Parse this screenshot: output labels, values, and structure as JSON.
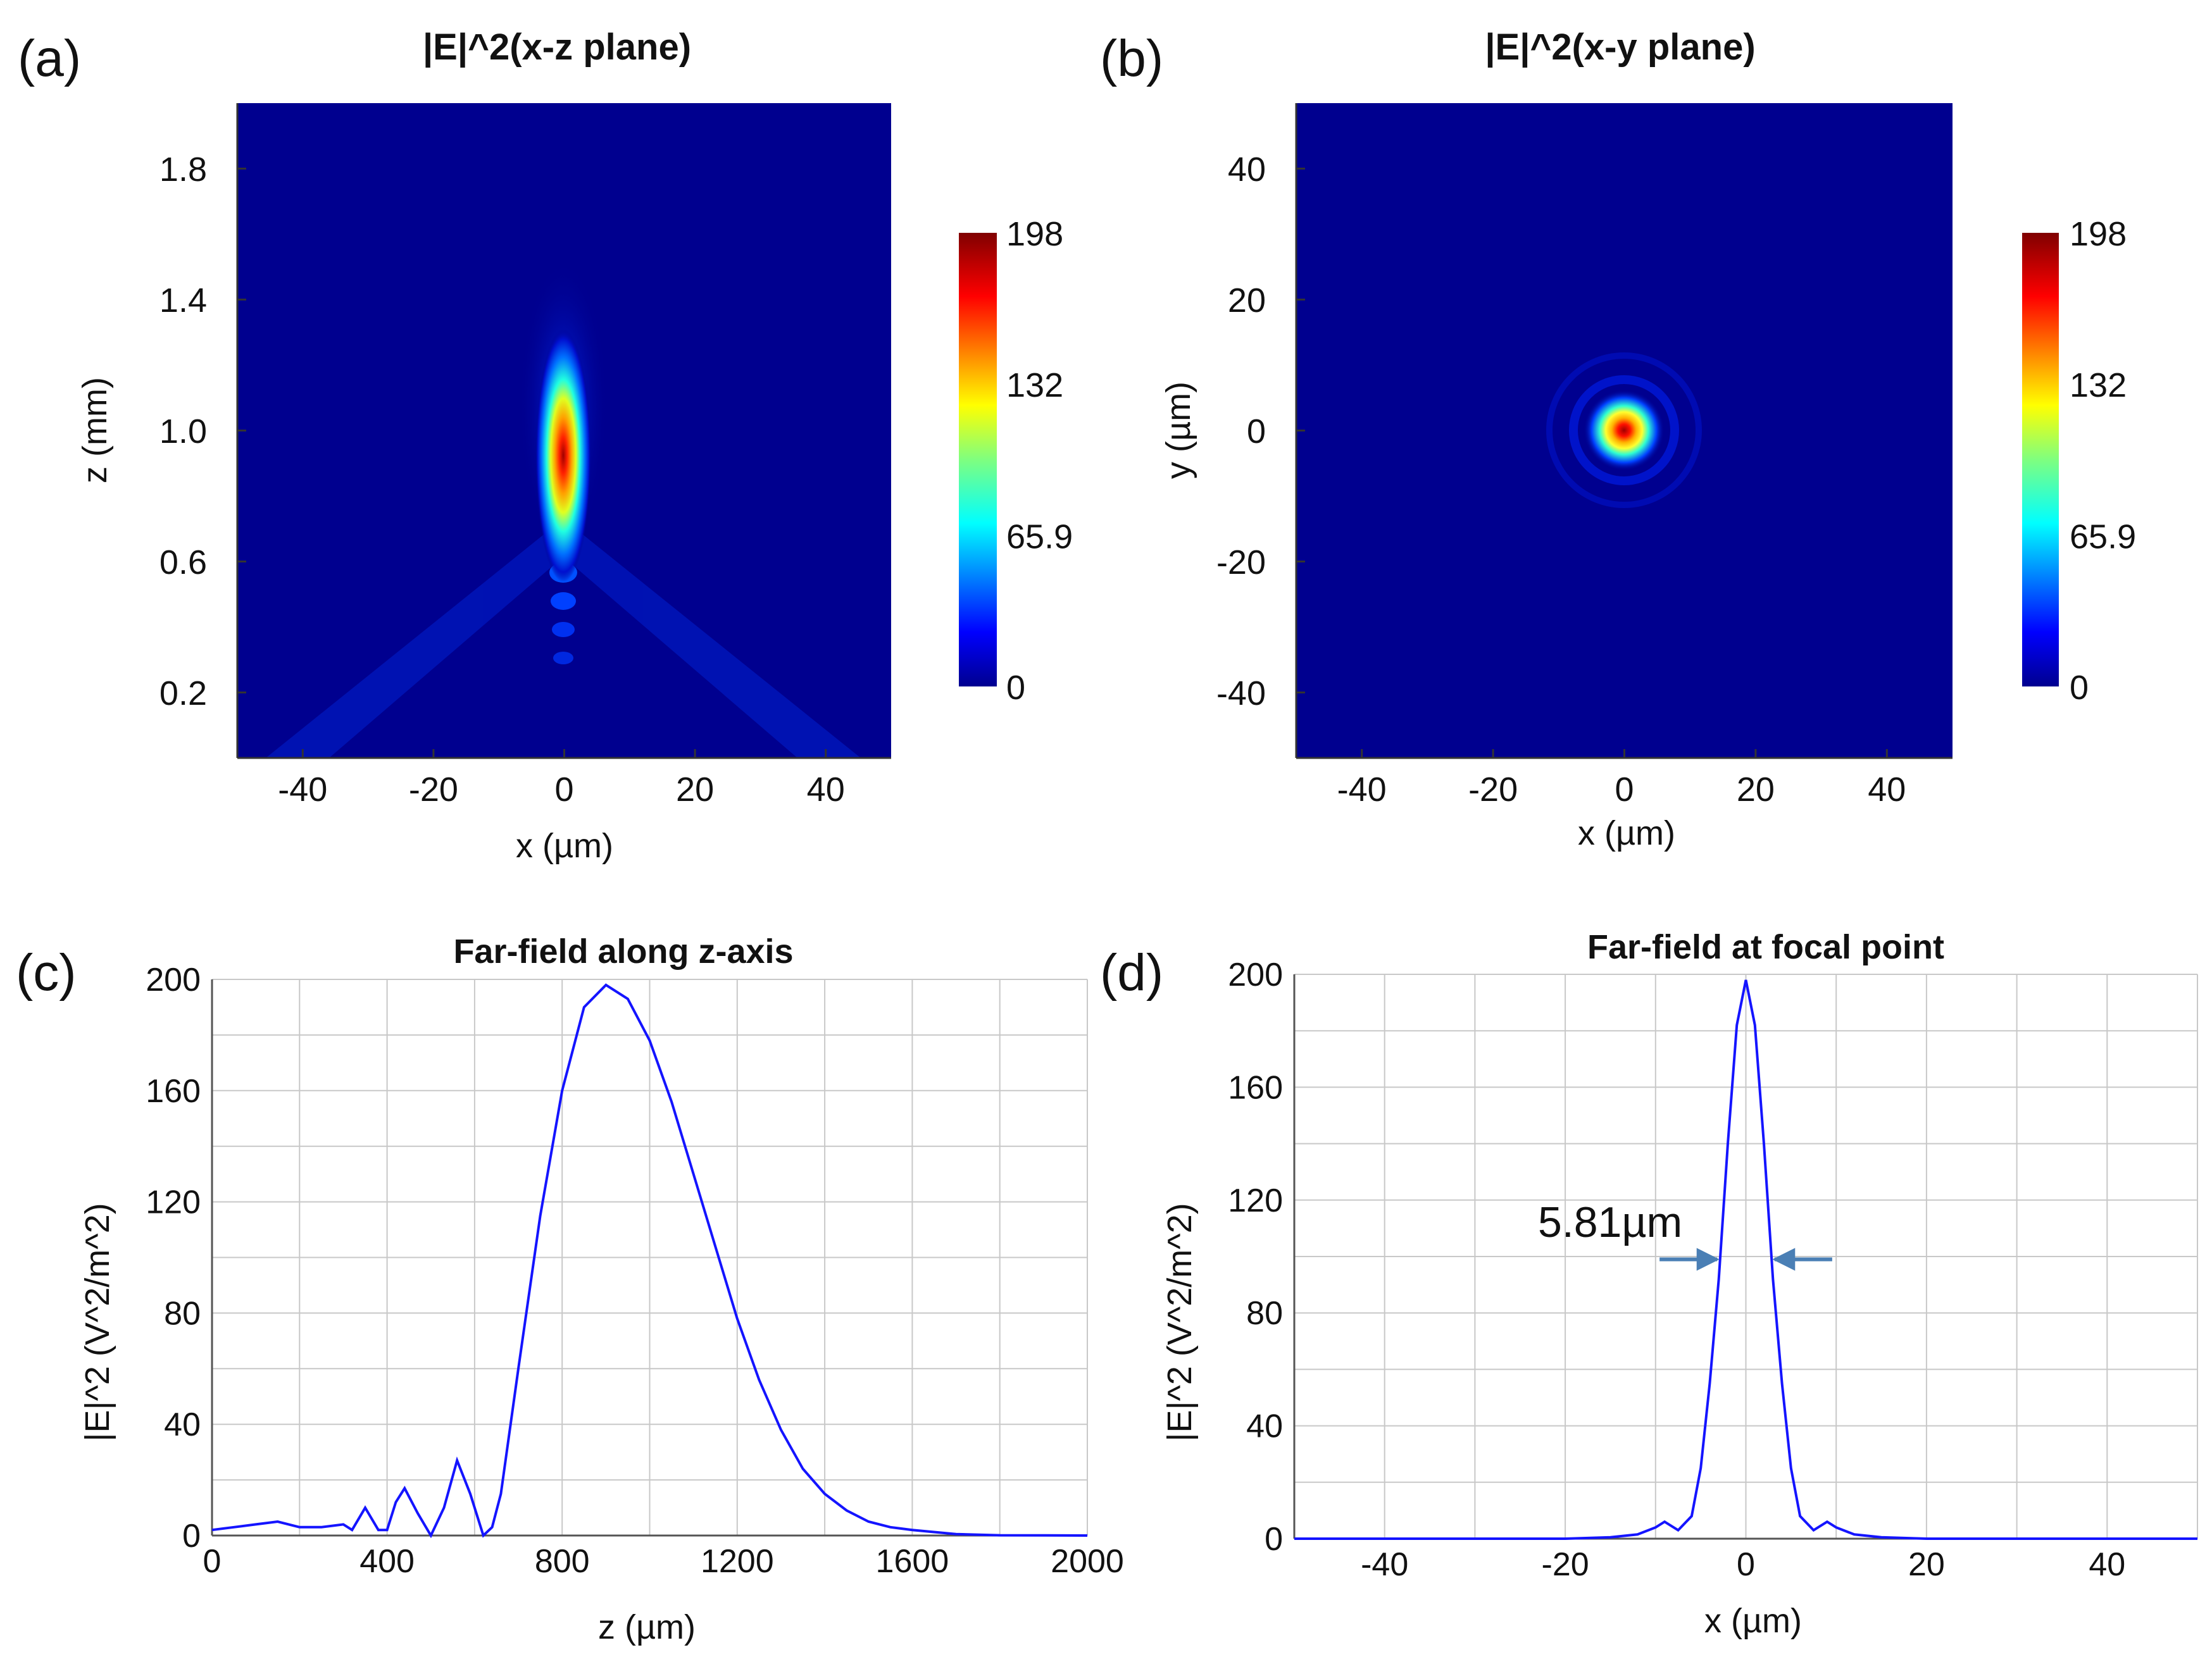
{
  "figure": {
    "colors": {
      "curve": "#1414ff",
      "grid": "#c8c8c8",
      "annotation_arrow": "#4a7fb5",
      "heatmap_bg": "#00008f"
    }
  },
  "chart_data": [
    {
      "panel_label": "(a)",
      "type": "heatmap",
      "title": "|E|^2(x-z plane)",
      "xlabel": "x (µm)",
      "ylabel": "z (mm)",
      "x_ticks": [
        "-40",
        "-20",
        "0",
        "20",
        "40"
      ],
      "x_tick_values": [
        -40,
        -20,
        0,
        20,
        40
      ],
      "y_ticks": [
        "0.2",
        "0.6",
        "1.0",
        "1.4",
        "1.8"
      ],
      "y_tick_values": [
        0.2,
        0.6,
        1.0,
        1.4,
        1.8
      ],
      "xlim": [
        -50,
        50
      ],
      "ylim": [
        0,
        2.0
      ],
      "colorbar": {
        "ticks": [
          "0",
          "65.9",
          "132",
          "198"
        ],
        "tick_values": [
          0,
          65.9,
          132,
          198
        ],
        "range": [
          0,
          198
        ],
        "colormap": "jet"
      },
      "peak": {
        "x": 0,
        "z": 0.9,
        "value": 198
      }
    },
    {
      "panel_label": "(b)",
      "type": "heatmap",
      "title": "|E|^2(x-y plane)",
      "xlabel": "x (µm)",
      "ylabel": "y (µm)",
      "x_ticks": [
        "-40",
        "-20",
        "0",
        "20",
        "40"
      ],
      "x_tick_values": [
        -40,
        -20,
        0,
        20,
        40
      ],
      "y_ticks": [
        "-40",
        "-20",
        "0",
        "20",
        "40"
      ],
      "y_tick_values": [
        -40,
        -20,
        0,
        20,
        40
      ],
      "xlim": [
        -50,
        50
      ],
      "ylim": [
        -50,
        50
      ],
      "colorbar": {
        "ticks": [
          "0",
          "65.9",
          "132",
          "198"
        ],
        "tick_values": [
          0,
          65.9,
          132,
          198
        ],
        "range": [
          0,
          198
        ],
        "colormap": "jet"
      },
      "peak": {
        "x": 0,
        "y": 0,
        "value": 198
      }
    },
    {
      "panel_label": "(c)",
      "type": "line",
      "title": "Far-field along z-axis",
      "xlabel": "z (µm)",
      "ylabel": "|E|^2 (V^2/m^2)",
      "x_ticks": [
        "0",
        "400",
        "800",
        "1200",
        "1600",
        "2000"
      ],
      "x_tick_values": [
        0,
        400,
        800,
        1200,
        1600,
        2000
      ],
      "y_ticks": [
        "0",
        "40",
        "80",
        "120",
        "160",
        "200"
      ],
      "y_tick_values": [
        0,
        40,
        80,
        120,
        160,
        200
      ],
      "xlim": [
        0,
        2000
      ],
      "ylim": [
        0,
        200
      ],
      "grid": true,
      "series": [
        {
          "name": "|E|^2",
          "x": [
            0,
            50,
            100,
            150,
            200,
            250,
            300,
            320,
            350,
            380,
            400,
            420,
            440,
            470,
            500,
            530,
            560,
            590,
            620,
            640,
            660,
            700,
            750,
            800,
            850,
            900,
            950,
            1000,
            1050,
            1100,
            1150,
            1200,
            1250,
            1300,
            1350,
            1400,
            1450,
            1500,
            1550,
            1600,
            1700,
            1800,
            2000
          ],
          "y": [
            2,
            3,
            4,
            5,
            3,
            3,
            4,
            2,
            10,
            2,
            2,
            12,
            17,
            8,
            0,
            10,
            27,
            15,
            0,
            3,
            15,
            60,
            115,
            160,
            190,
            198,
            193,
            178,
            156,
            130,
            104,
            78,
            56,
            38,
            24,
            15,
            9,
            5,
            3,
            2,
            0.5,
            0.1,
            0
          ]
        }
      ]
    },
    {
      "panel_label": "(d)",
      "type": "line",
      "title": "Far-field at focal point",
      "xlabel": "x (µm)",
      "ylabel": "|E|^2 (V^2/m^2)",
      "x_ticks": [
        "-40",
        "-20",
        "0",
        "20",
        "40"
      ],
      "x_tick_values": [
        -40,
        -20,
        0,
        20,
        40
      ],
      "y_ticks": [
        "0",
        "40",
        "80",
        "120",
        "160",
        "200"
      ],
      "y_tick_values": [
        0,
        40,
        80,
        120,
        160,
        200
      ],
      "xlim": [
        -50,
        50
      ],
      "ylim": [
        0,
        200
      ],
      "grid": true,
      "annotation": "5.81µm",
      "fwhm_edges": [
        -2.9,
        2.9
      ],
      "fwhm_level": 99,
      "series": [
        {
          "name": "|E|^2",
          "x": [
            -50,
            -20,
            -15,
            -12,
            -10,
            -9,
            -7.5,
            -6,
            -5,
            -4,
            -3,
            -2,
            -1,
            0,
            1,
            2,
            3,
            4,
            5,
            6,
            7.5,
            9,
            10,
            12,
            15,
            20,
            50
          ],
          "y": [
            0,
            0,
            0.5,
            1.5,
            4,
            6,
            3,
            8,
            25,
            55,
            92,
            140,
            182,
            198,
            182,
            140,
            92,
            55,
            25,
            8,
            3,
            6,
            4,
            1.5,
            0.5,
            0,
            0
          ]
        }
      ]
    }
  ]
}
